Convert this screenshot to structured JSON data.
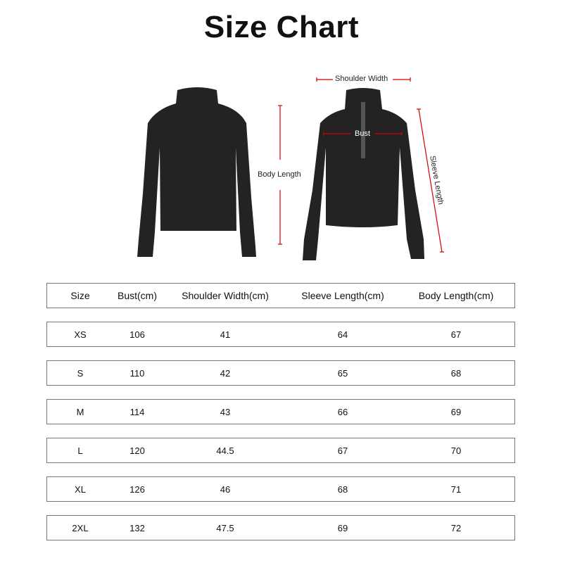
{
  "title": "Size Chart",
  "diagram": {
    "labels": {
      "shoulder_width": "Shoulder Width",
      "bust": "Bust",
      "body_length": "Body Length",
      "sleeve_length": "Sleeve Length"
    },
    "measure_line_color": "#d40000",
    "garment_color": "#222222"
  },
  "table": {
    "headers": [
      "Size",
      "Bust(cm)",
      "Shoulder Width(cm)",
      "Sleeve Length(cm)",
      "Body Length(cm)"
    ],
    "rows": [
      [
        "XS",
        "106",
        "41",
        "64",
        "67"
      ],
      [
        "S",
        "110",
        "42",
        "65",
        "68"
      ],
      [
        "M",
        "114",
        "43",
        "66",
        "69"
      ],
      [
        "L",
        "120",
        "44.5",
        "67",
        "70"
      ],
      [
        "XL",
        "126",
        "46",
        "68",
        "71"
      ],
      [
        "2XL",
        "132",
        "47.5",
        "69",
        "72"
      ]
    ]
  }
}
